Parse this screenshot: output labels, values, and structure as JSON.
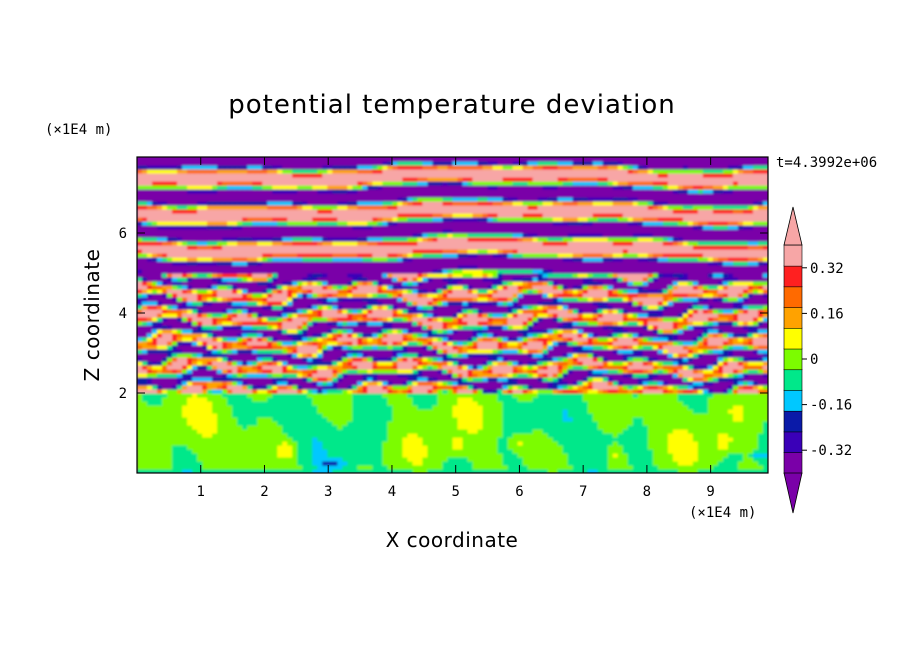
{
  "chart_data": {
    "type": "heatmap",
    "title": "potential temperature deviation",
    "xlabel": "X coordinate",
    "ylabel": "Z coordinate",
    "x_unit": "(×1E4 m)",
    "y_unit": "(×1E4 m)",
    "time_label": "t=4.3992e+06",
    "xlim": [
      0,
      9.9
    ],
    "ylim": [
      0,
      7.9
    ],
    "x_ticks": [
      1,
      2,
      3,
      4,
      5,
      6,
      7,
      8,
      9
    ],
    "y_ticks": [
      2,
      4,
      6
    ],
    "x_tick_labels": [
      "1",
      "2",
      "3",
      "4",
      "5",
      "6",
      "7",
      "8",
      "9"
    ],
    "y_tick_labels": [
      "2",
      "4",
      "6"
    ],
    "colorbar": {
      "levels": [
        -0.4,
        -0.32,
        -0.24,
        -0.16,
        -0.08,
        0,
        0.08,
        0.16,
        0.24,
        0.32,
        0.4
      ],
      "labels": [
        "0.32",
        "0.16",
        "0",
        "-0.16",
        "-0.32"
      ],
      "label_values": [
        0.32,
        0.16,
        0,
        -0.16,
        -0.32
      ],
      "colors": [
        "#7a00a8",
        "#3a00b8",
        "#0a1aa8",
        "#00c8ff",
        "#00e88a",
        "#7cfc00",
        "#ffff00",
        "#ffa200",
        "#ff6a00",
        "#ff2020",
        "#f7a6a6"
      ],
      "over_color": "#f7a6a6",
      "under_color": "#7a00a8"
    }
  }
}
